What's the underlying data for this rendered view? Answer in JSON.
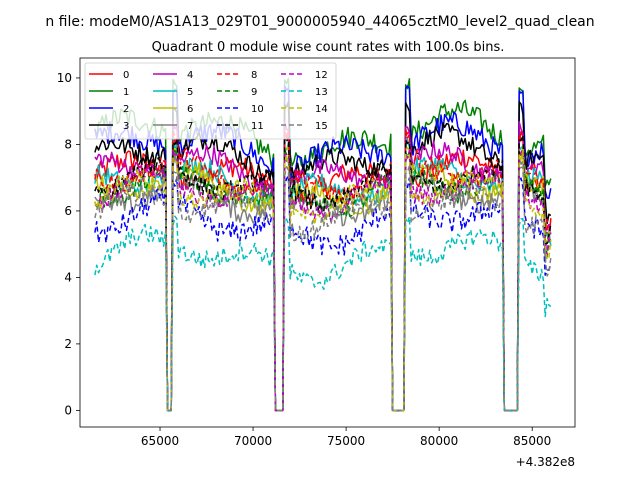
{
  "figure": {
    "suptitle": "n file: modeM0/AS1A13_029T01_9000005940_44065cztM0_level2_quad_clean",
    "offset_text": "+4.382e8"
  },
  "chart_data": {
    "type": "line",
    "title": "Quadrant 0 module wise count rates with 100.0s bins.",
    "xlabel": "",
    "ylabel": "",
    "x_offset": 438200000,
    "xlim": [
      60700,
      87300
    ],
    "ylim": [
      -0.5,
      10.6
    ],
    "x_ticks": [
      65000,
      70000,
      75000,
      80000,
      85000
    ],
    "x_tick_labels": [
      "65000",
      "70000",
      "75000",
      "80000",
      "85000"
    ],
    "y_ticks": [
      0,
      2,
      4,
      6,
      8,
      10
    ],
    "y_tick_labels": [
      "0",
      "2",
      "4",
      "6",
      "8",
      "10"
    ],
    "grid": false,
    "legend_position": "top-left",
    "legend_columns": 4,
    "time_range": [
      61500,
      86000
    ],
    "bin_seconds": 100,
    "data_gaps": [
      [
        65300,
        65700
      ],
      [
        71100,
        71700
      ],
      [
        77400,
        78200
      ],
      [
        83400,
        84300
      ]
    ],
    "gap_value": 0,
    "series": [
      {
        "name": "0",
        "color": "#ff0000",
        "style": "solid",
        "mean": 7.0,
        "trend": 0.3,
        "noise": 0.35,
        "peak": 8.4
      },
      {
        "name": "1",
        "color": "#008000",
        "style": "solid",
        "mean": 8.2,
        "trend": 0.5,
        "noise": 0.35,
        "peak": 10.0
      },
      {
        "name": "2",
        "color": "#0000ff",
        "style": "solid",
        "mean": 7.9,
        "trend": 0.4,
        "noise": 0.35,
        "peak": 9.9
      },
      {
        "name": "3",
        "color": "#000000",
        "style": "solid",
        "mean": 7.6,
        "trend": 0.4,
        "noise": 0.3,
        "peak": 9.3
      },
      {
        "name": "4",
        "color": "#bf00bf",
        "style": "solid",
        "mean": 7.2,
        "trend": 0.3,
        "noise": 0.3,
        "peak": 8.7
      },
      {
        "name": "5",
        "color": "#00bfbf",
        "style": "solid",
        "mean": 6.8,
        "trend": 0.3,
        "noise": 0.3,
        "peak": 8.2
      },
      {
        "name": "6",
        "color": "#bfbf00",
        "style": "solid",
        "mean": 6.6,
        "trend": 0.3,
        "noise": 0.3,
        "peak": 8.0
      },
      {
        "name": "7",
        "color": "#808080",
        "style": "solid",
        "mean": 6.3,
        "trend": 0.3,
        "noise": 0.3,
        "peak": 7.7
      },
      {
        "name": "8",
        "color": "#ff0000",
        "style": "dashed",
        "mean": 7.0,
        "trend": 0.3,
        "noise": 0.3,
        "peak": 8.5
      },
      {
        "name": "9",
        "color": "#008000",
        "style": "dashed",
        "mean": 6.6,
        "trend": 0.3,
        "noise": 0.3,
        "peak": 8.0
      },
      {
        "name": "10",
        "color": "#0000ff",
        "style": "dashed",
        "mean": 5.6,
        "trend": 0.4,
        "noise": 0.35,
        "peak": 7.1
      },
      {
        "name": "11",
        "color": "#000000",
        "style": "dashed",
        "mean": 6.8,
        "trend": 0.3,
        "noise": 0.3,
        "peak": 8.3
      },
      {
        "name": "12",
        "color": "#bf00bf",
        "style": "dashed",
        "mean": 6.5,
        "trend": 0.3,
        "noise": 0.3,
        "peak": 7.9
      },
      {
        "name": "13",
        "color": "#00bfbf",
        "style": "dashed",
        "mean": 4.6,
        "trend": 0.4,
        "noise": 0.3,
        "peak": 5.9
      },
      {
        "name": "14",
        "color": "#bfbf00",
        "style": "dashed",
        "mean": 6.4,
        "trend": 0.3,
        "noise": 0.3,
        "peak": 7.8
      },
      {
        "name": "15",
        "color": "#808080",
        "style": "dashed",
        "mean": 6.0,
        "trend": 0.3,
        "noise": 0.3,
        "peak": 7.4
      }
    ]
  }
}
